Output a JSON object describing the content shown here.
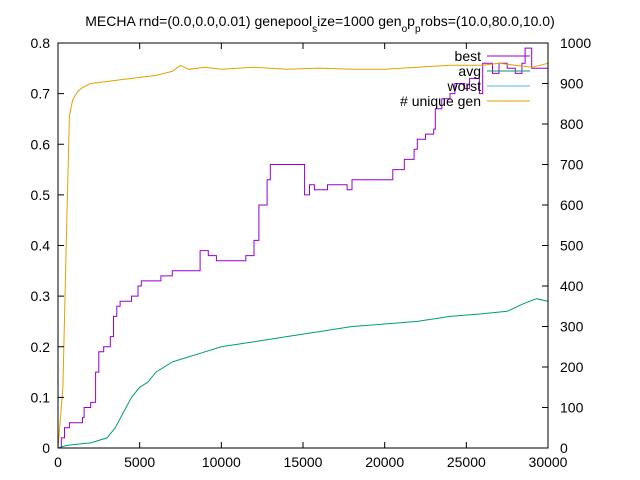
{
  "chart_data": {
    "type": "line",
    "title_parts": {
      "a": "MECHA rnd=(0.0,0.0,0.01) genepool",
      "a_sub": "s",
      "b": "ize=1000 gen",
      "b_sub1": "o",
      "c": "p",
      "c_sub": "p",
      "d": "robs=(10.0,80.0,10.0)"
    },
    "xlim": [
      0,
      30000
    ],
    "ylim_left": [
      0,
      0.8
    ],
    "ylim_right": [
      0,
      1000
    ],
    "x_ticks": [
      "0",
      "5000",
      "10000",
      "15000",
      "20000",
      "25000",
      "30000"
    ],
    "y_left_ticks": [
      "0",
      "0.1",
      "0.2",
      "0.3",
      "0.4",
      "0.5",
      "0.6",
      "0.7",
      "0.8"
    ],
    "y_right_ticks": [
      "0",
      "100",
      "200",
      "300",
      "400",
      "500",
      "600",
      "700",
      "800",
      "900",
      "1000"
    ],
    "grid": false,
    "legend_position": "top-right",
    "series": [
      {
        "name": "best",
        "color": "#9400d3",
        "axis": "left",
        "points": [
          [
            0,
            0.0
          ],
          [
            200,
            0.02
          ],
          [
            400,
            0.04
          ],
          [
            700,
            0.05
          ],
          [
            1500,
            0.06
          ],
          [
            1600,
            0.08
          ],
          [
            2000,
            0.09
          ],
          [
            2300,
            0.15
          ],
          [
            2500,
            0.19
          ],
          [
            2800,
            0.2
          ],
          [
            3200,
            0.22
          ],
          [
            3400,
            0.26
          ],
          [
            3600,
            0.28
          ],
          [
            3800,
            0.29
          ],
          [
            4500,
            0.3
          ],
          [
            4900,
            0.32
          ],
          [
            5100,
            0.33
          ],
          [
            6000,
            0.33
          ],
          [
            6300,
            0.34
          ],
          [
            7000,
            0.35
          ],
          [
            8500,
            0.35
          ],
          [
            8700,
            0.39
          ],
          [
            9200,
            0.38
          ],
          [
            9700,
            0.37
          ],
          [
            10500,
            0.37
          ],
          [
            11500,
            0.38
          ],
          [
            12000,
            0.41
          ],
          [
            12300,
            0.48
          ],
          [
            12800,
            0.53
          ],
          [
            13000,
            0.56
          ],
          [
            15000,
            0.56
          ],
          [
            15100,
            0.5
          ],
          [
            15400,
            0.52
          ],
          [
            15700,
            0.51
          ],
          [
            16500,
            0.52
          ],
          [
            17700,
            0.51
          ],
          [
            18000,
            0.53
          ],
          [
            20000,
            0.53
          ],
          [
            20500,
            0.55
          ],
          [
            21200,
            0.57
          ],
          [
            21800,
            0.59
          ],
          [
            22000,
            0.61
          ],
          [
            22500,
            0.62
          ],
          [
            23000,
            0.63
          ],
          [
            23100,
            0.67
          ],
          [
            23500,
            0.69
          ],
          [
            24000,
            0.7
          ],
          [
            24300,
            0.72
          ],
          [
            24900,
            0.71
          ],
          [
            25200,
            0.73
          ],
          [
            25800,
            0.7
          ],
          [
            26000,
            0.76
          ],
          [
            26600,
            0.74
          ],
          [
            27000,
            0.76
          ],
          [
            27500,
            0.75
          ],
          [
            28000,
            0.74
          ],
          [
            28400,
            0.76
          ],
          [
            28600,
            0.79
          ],
          [
            29000,
            0.75
          ],
          [
            30000,
            0.75
          ]
        ]
      },
      {
        "name": "avg",
        "color": "#009e73",
        "axis": "left",
        "points": [
          [
            0,
            0.0
          ],
          [
            500,
            0.005
          ],
          [
            1000,
            0.007
          ],
          [
            2000,
            0.01
          ],
          [
            3000,
            0.02
          ],
          [
            3500,
            0.04
          ],
          [
            4000,
            0.07
          ],
          [
            4500,
            0.1
          ],
          [
            5000,
            0.12
          ],
          [
            5500,
            0.13
          ],
          [
            6000,
            0.15
          ],
          [
            7000,
            0.17
          ],
          [
            8000,
            0.18
          ],
          [
            9000,
            0.19
          ],
          [
            10000,
            0.2
          ],
          [
            12000,
            0.21
          ],
          [
            14000,
            0.22
          ],
          [
            16000,
            0.23
          ],
          [
            18000,
            0.24
          ],
          [
            20000,
            0.245
          ],
          [
            22000,
            0.25
          ],
          [
            24000,
            0.26
          ],
          [
            26000,
            0.265
          ],
          [
            27500,
            0.27
          ],
          [
            28500,
            0.285
          ],
          [
            29300,
            0.295
          ],
          [
            30000,
            0.29
          ]
        ]
      },
      {
        "name": "worst",
        "color": "#56b4e9",
        "axis": "left",
        "points": [
          [
            0,
            0.0
          ],
          [
            30000,
            0.0
          ]
        ]
      },
      {
        "name": "# unique gen",
        "color": "#e69f00",
        "axis": "right",
        "points": [
          [
            0,
            0
          ],
          [
            300,
            150
          ],
          [
            500,
            500
          ],
          [
            700,
            820
          ],
          [
            900,
            860
          ],
          [
            1200,
            880
          ],
          [
            1500,
            890
          ],
          [
            2000,
            900
          ],
          [
            3000,
            905
          ],
          [
            4000,
            910
          ],
          [
            5000,
            915
          ],
          [
            6000,
            920
          ],
          [
            7000,
            930
          ],
          [
            7500,
            945
          ],
          [
            8000,
            935
          ],
          [
            9000,
            940
          ],
          [
            10000,
            935
          ],
          [
            12000,
            940
          ],
          [
            14000,
            935
          ],
          [
            16000,
            938
          ],
          [
            18000,
            935
          ],
          [
            20000,
            935
          ],
          [
            22000,
            940
          ],
          [
            24000,
            945
          ],
          [
            26000,
            945
          ],
          [
            27000,
            950
          ],
          [
            28000,
            945
          ],
          [
            29000,
            940
          ],
          [
            30000,
            950
          ]
        ]
      }
    ]
  }
}
